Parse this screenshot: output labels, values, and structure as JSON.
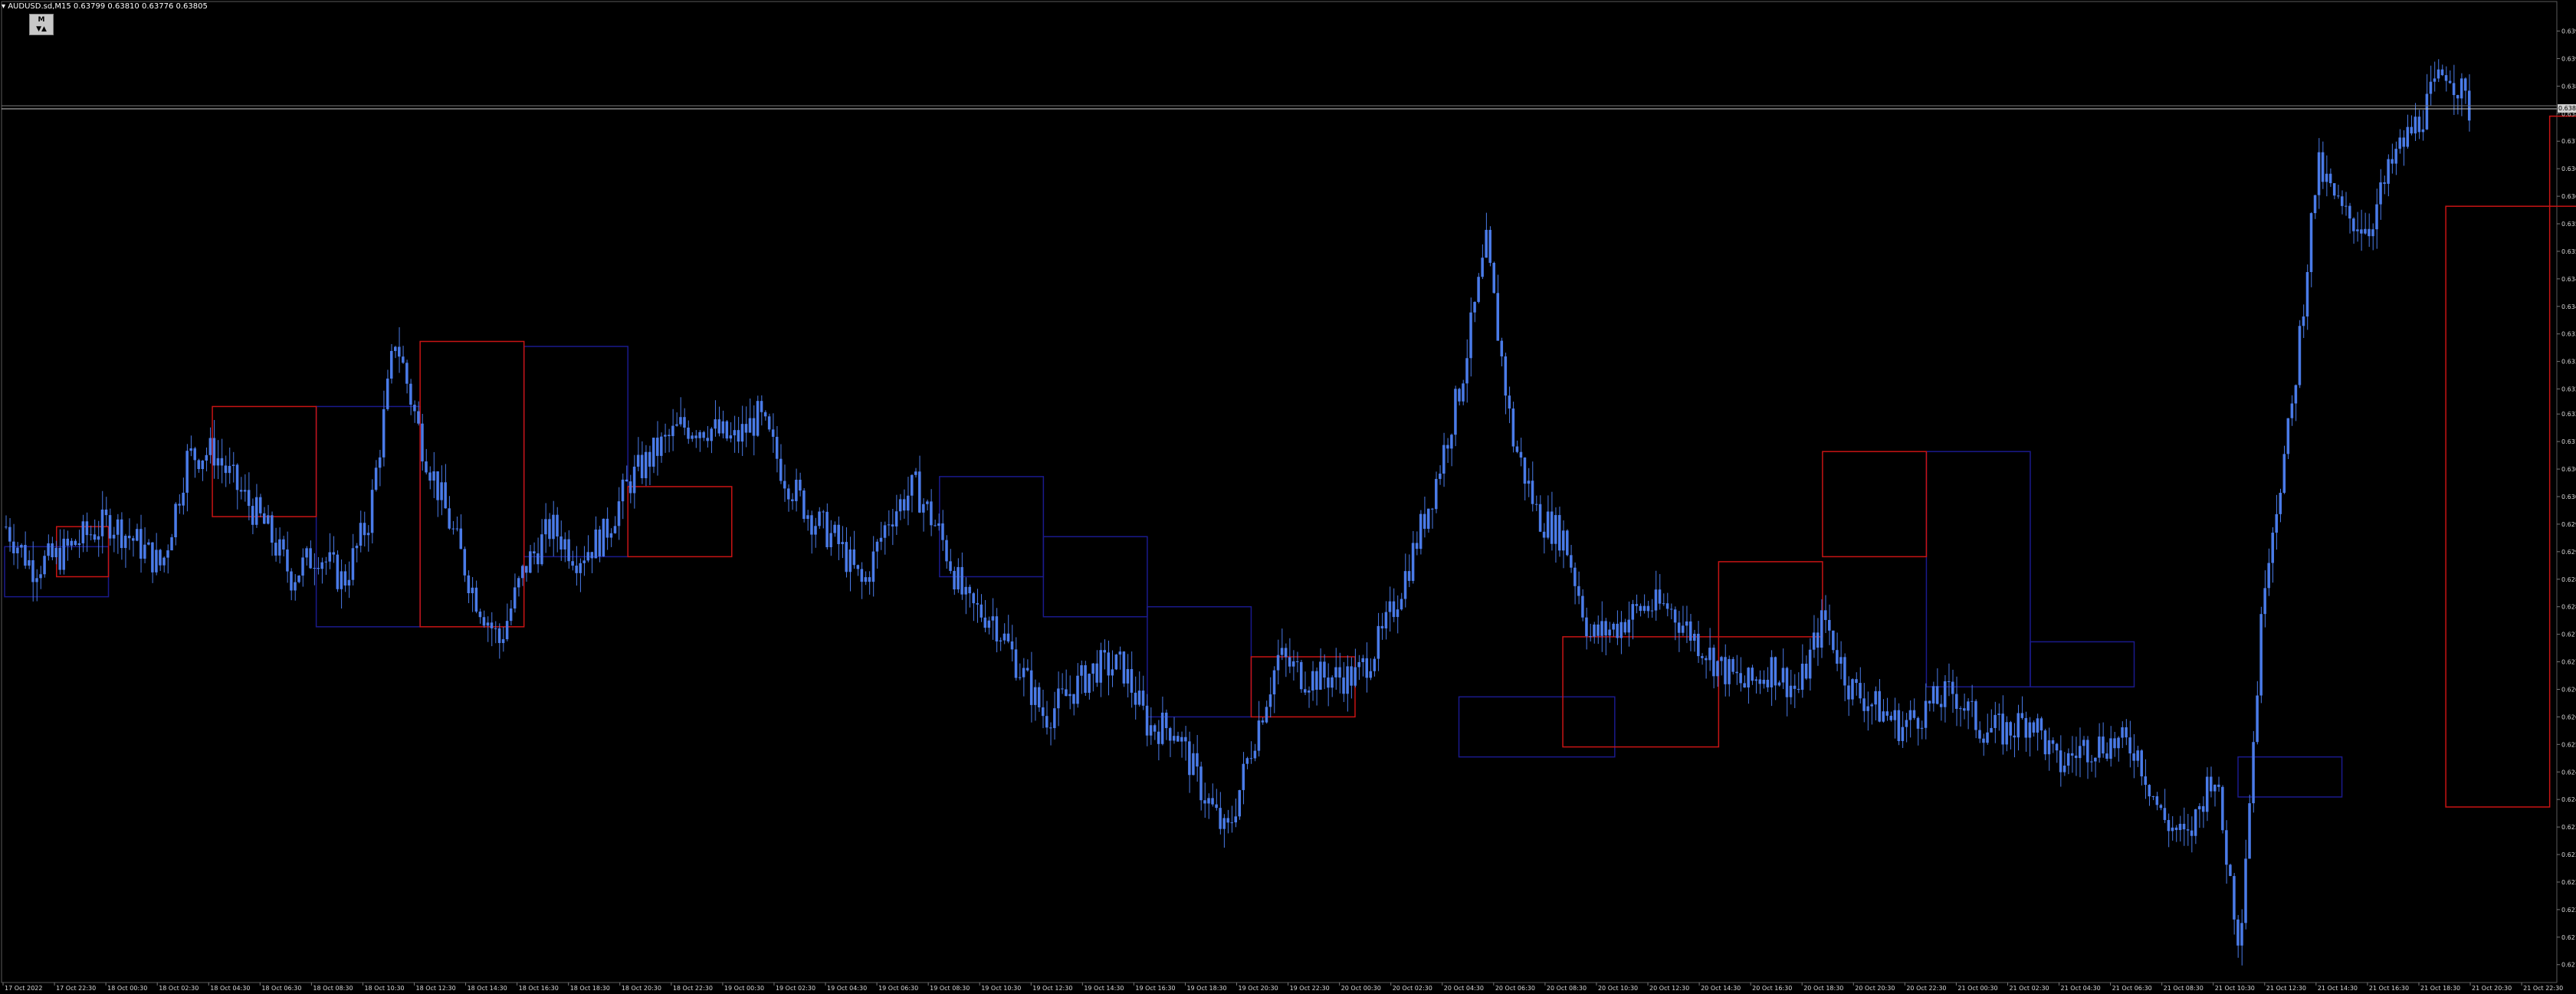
{
  "header": {
    "symbol_line": "AUDUSD.sd,M15  0.63799 0.63810 0.63776 0.63805",
    "timeframe_button": "M",
    "timeframe_arrows": "▼▲"
  },
  "current_price_label": "0.63805",
  "colors": {
    "background": "#000000",
    "candle": "#4a7be8",
    "bull_box": "#c81414",
    "bear_box": "#1a1a8c",
    "axis_text": "#d8d8d8",
    "price_line": "#c8c8c8"
  },
  "chart_data": {
    "type": "candlestick",
    "symbol": "AUDUSD.sd",
    "timeframe": "M15",
    "ylim": [
      0.621,
      0.6398
    ],
    "y_ticks": [
      "0.63970",
      "0.63915",
      "0.63860",
      "0.63805",
      "0.63750",
      "0.63695",
      "0.63640",
      "0.63585",
      "0.63530",
      "0.63475",
      "0.63420",
      "0.63365",
      "0.63310",
      "0.63255",
      "0.63205",
      "0.63150",
      "0.63095",
      "0.63040",
      "0.62985",
      "0.62930",
      "0.62875",
      "0.62820",
      "0.62765",
      "0.62710",
      "0.62655",
      "0.62600",
      "0.62545",
      "0.62490",
      "0.62435",
      "0.62380",
      "0.62325",
      "0.62270",
      "0.62215",
      "0.62160",
      "0.62105"
    ],
    "x_ticks": [
      "17 Oct 2022",
      "17 Oct 22:30",
      "18 Oct 00:30",
      "18 Oct 02:30",
      "18 Oct 04:30",
      "18 Oct 06:30",
      "18 Oct 08:30",
      "18 Oct 10:30",
      "18 Oct 12:30",
      "18 Oct 14:30",
      "18 Oct 16:30",
      "18 Oct 18:30",
      "18 Oct 20:30",
      "18 Oct 22:30",
      "19 Oct 00:30",
      "19 Oct 02:30",
      "19 Oct 04:30",
      "19 Oct 06:30",
      "19 Oct 08:30",
      "19 Oct 10:30",
      "19 Oct 12:30",
      "19 Oct 14:30",
      "19 Oct 16:30",
      "19 Oct 18:30",
      "19 Oct 20:30",
      "19 Oct 22:30",
      "20 Oct 00:30",
      "20 Oct 02:30",
      "20 Oct 04:30",
      "20 Oct 06:30",
      "20 Oct 08:30",
      "20 Oct 10:30",
      "20 Oct 12:30",
      "20 Oct 14:30",
      "20 Oct 16:30",
      "20 Oct 18:30",
      "20 Oct 20:30",
      "20 Oct 22:30",
      "21 Oct 00:30",
      "21 Oct 02:30",
      "21 Oct 04:30",
      "21 Oct 06:30",
      "21 Oct 08:30",
      "21 Oct 10:30",
      "21 Oct 12:30",
      "21 Oct 14:30",
      "21 Oct 16:30",
      "21 Oct 18:30",
      "21 Oct 20:30",
      "21 Oct 22:30"
    ],
    "close_path": [
      [
        0,
        0.6298
      ],
      [
        1,
        0.629
      ],
      [
        2,
        0.6292
      ],
      [
        3,
        0.6296
      ],
      [
        4,
        0.6299
      ],
      [
        5,
        0.6295
      ],
      [
        6,
        0.629
      ],
      [
        7,
        0.6312
      ],
      [
        8,
        0.6313
      ],
      [
        9,
        0.6305
      ],
      [
        10,
        0.6298
      ],
      [
        11,
        0.6288
      ],
      [
        12,
        0.6293
      ],
      [
        13,
        0.6287
      ],
      [
        14,
        0.63
      ],
      [
        15,
        0.6336
      ],
      [
        16,
        0.6315
      ],
      [
        17,
        0.63
      ],
      [
        18,
        0.6285
      ],
      [
        19,
        0.6275
      ],
      [
        20,
        0.629
      ],
      [
        21,
        0.6298
      ],
      [
        22,
        0.6292
      ],
      [
        23,
        0.6296
      ],
      [
        24,
        0.6307
      ],
      [
        25,
        0.6313
      ],
      [
        26,
        0.6318
      ],
      [
        27,
        0.6318
      ],
      [
        28,
        0.6315
      ],
      [
        29,
        0.632
      ],
      [
        30,
        0.6308
      ],
      [
        31,
        0.63
      ],
      [
        32,
        0.6295
      ],
      [
        33,
        0.6286
      ],
      [
        34,
        0.63
      ],
      [
        35,
        0.6306
      ],
      [
        36,
        0.6296
      ],
      [
        37,
        0.6282
      ],
      [
        38,
        0.628
      ],
      [
        39,
        0.627
      ],
      [
        40,
        0.626
      ],
      [
        41,
        0.6265
      ],
      [
        42,
        0.627
      ],
      [
        43,
        0.627
      ],
      [
        44,
        0.6258
      ],
      [
        45,
        0.6258
      ],
      [
        46,
        0.6246
      ],
      [
        47,
        0.6236
      ],
      [
        48,
        0.6255
      ],
      [
        49,
        0.6272
      ],
      [
        50,
        0.6268
      ],
      [
        51,
        0.6268
      ],
      [
        52,
        0.6268
      ],
      [
        53,
        0.6276
      ],
      [
        54,
        0.629
      ],
      [
        55,
        0.6306
      ],
      [
        56,
        0.6326
      ],
      [
        57,
        0.6354
      ],
      [
        58,
        0.6316
      ],
      [
        59,
        0.63
      ],
      [
        60,
        0.6296
      ],
      [
        61,
        0.6276
      ],
      [
        62,
        0.6278
      ],
      [
        63,
        0.6282
      ],
      [
        64,
        0.6282
      ],
      [
        65,
        0.6276
      ],
      [
        66,
        0.627
      ],
      [
        67,
        0.6266
      ],
      [
        68,
        0.627
      ],
      [
        69,
        0.6265
      ],
      [
        70,
        0.628
      ],
      [
        71,
        0.6266
      ],
      [
        72,
        0.6262
      ],
      [
        73,
        0.6258
      ],
      [
        74,
        0.6262
      ],
      [
        75,
        0.6265
      ],
      [
        76,
        0.6258
      ],
      [
        77,
        0.6257
      ],
      [
        78,
        0.626
      ],
      [
        79,
        0.625
      ],
      [
        80,
        0.6254
      ],
      [
        81,
        0.6255
      ],
      [
        82,
        0.6254
      ],
      [
        83,
        0.624
      ],
      [
        84,
        0.6235
      ],
      [
        85,
        0.625
      ],
      [
        86,
        0.6215
      ],
      [
        87,
        0.629
      ],
      [
        88,
        0.632
      ],
      [
        89,
        0.637
      ],
      [
        90,
        0.636
      ],
      [
        91,
        0.6358
      ],
      [
        92,
        0.6372
      ],
      [
        93,
        0.638
      ],
      [
        94,
        0.639
      ],
      [
        95,
        0.638
      ]
    ],
    "bull_boxes": [
      {
        "x0": 1,
        "x1": 2,
        "ylo": 0.6288,
        "yhi": 0.6298
      },
      {
        "x0": 4,
        "x1": 6,
        "ylo": 0.63,
        "yhi": 0.6322
      },
      {
        "x0": 8,
        "x1": 10,
        "ylo": 0.6278,
        "yhi": 0.6335
      },
      {
        "x0": 12,
        "x1": 14,
        "ylo": 0.6292,
        "yhi": 0.6306
      },
      {
        "x0": 24,
        "x1": 26,
        "ylo": 0.626,
        "yhi": 0.6272
      },
      {
        "x0": 30,
        "x1": 33,
        "ylo": 0.6254,
        "yhi": 0.6276
      },
      {
        "x0": 33,
        "x1": 35,
        "ylo": 0.6276,
        "yhi": 0.6291
      },
      {
        "x0": 35,
        "x1": 37,
        "ylo": 0.6292,
        "yhi": 0.6313
      },
      {
        "x0": 47,
        "x1": 49,
        "ylo": 0.6242,
        "yhi": 0.6362
      },
      {
        "x0": 49,
        "x1": 51,
        "ylo": 0.6362,
        "yhi": 0.638
      }
    ],
    "bear_boxes": [
      {
        "x0": 0,
        "x1": 2,
        "ylo": 0.6284,
        "yhi": 0.6294
      },
      {
        "x0": 6,
        "x1": 8,
        "ylo": 0.6278,
        "yhi": 0.6322
      },
      {
        "x0": 10,
        "x1": 12,
        "ylo": 0.6292,
        "yhi": 0.6334
      },
      {
        "x0": 18,
        "x1": 20,
        "ylo": 0.6288,
        "yhi": 0.6308
      },
      {
        "x0": 20,
        "x1": 22,
        "ylo": 0.628,
        "yhi": 0.6296
      },
      {
        "x0": 22,
        "x1": 24,
        "ylo": 0.626,
        "yhi": 0.6282
      },
      {
        "x0": 28,
        "x1": 31,
        "ylo": 0.6252,
        "yhi": 0.6264
      },
      {
        "x0": 37,
        "x1": 39,
        "ylo": 0.6266,
        "yhi": 0.6313
      },
      {
        "x0": 39,
        "x1": 41,
        "ylo": 0.6266,
        "yhi": 0.6275
      },
      {
        "x0": 43,
        "x1": 45,
        "ylo": 0.6244,
        "yhi": 0.6252
      }
    ]
  }
}
